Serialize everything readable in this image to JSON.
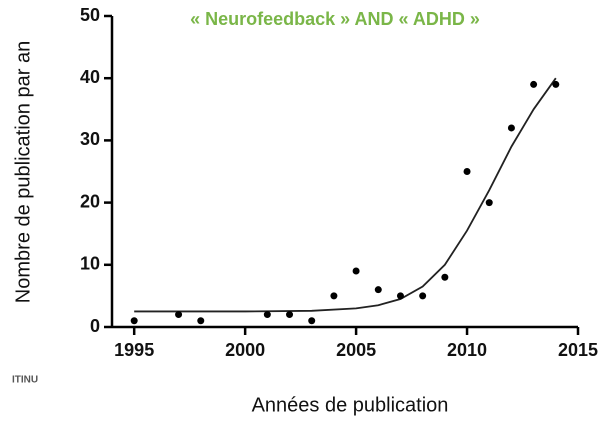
{
  "chart_data": {
    "type": "scatter",
    "title": "« Neurofeedback » AND « ADHD »",
    "x_label": "Années de publication",
    "y_label": "Nombre de publication par an",
    "annotation": "ITINU",
    "x": [
      1995,
      1997,
      1998,
      2001,
      2002,
      2003,
      2004,
      2005,
      2006,
      2007,
      2008,
      2009,
      2010,
      2011,
      2012,
      2013,
      2014
    ],
    "values": [
      1,
      2,
      1,
      2,
      2,
      1,
      5,
      9,
      6,
      5,
      5,
      8,
      25,
      20,
      32,
      39,
      39
    ],
    "color": "#000000",
    "fit_curve": {
      "x": [
        1995,
        2000,
        2003,
        2005,
        2006,
        2007,
        2008,
        2009,
        2010,
        2011,
        2012,
        2013,
        2014
      ],
      "values": [
        2.5,
        2.5,
        2.6,
        3,
        3.5,
        4.5,
        6.5,
        10,
        15.5,
        22,
        29,
        35,
        40
      ],
      "color": "#222222"
    },
    "xlim": [
      1994,
      2015
    ],
    "xticks": [
      1995,
      2000,
      2005,
      2010,
      2015
    ],
    "ylim": [
      0,
      50
    ],
    "yticks": [
      0,
      10,
      20,
      30,
      40,
      50
    ]
  }
}
